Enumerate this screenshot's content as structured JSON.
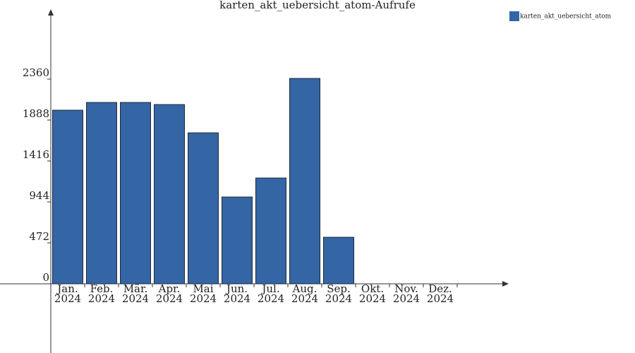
{
  "chart_data": {
    "type": "bar",
    "title": "karten_akt_uebersicht_atom-Aufrufe",
    "categories": [
      "Jan. 2024",
      "Feb. 2024",
      "Mär. 2024",
      "Apr. 2024",
      "Mai 2024",
      "Jun. 2024",
      "Jul. 2024",
      "Aug. 2024",
      "Sep. 2024",
      "Okt. 2024",
      "Nov. 2024",
      "Dez. 2024"
    ],
    "series": [
      {
        "name": "karten_akt_uebersicht_atom",
        "color": "#3465a4",
        "values": [
          2002,
          2091,
          2091,
          2067,
          1741,
          1001,
          1220,
          2368,
          537,
          0,
          0,
          0
        ]
      }
    ],
    "ylim": [
      0,
      3150
    ],
    "yticks": [
      0,
      472,
      944,
      1416,
      1888,
      2360
    ],
    "legend": "top-right"
  }
}
